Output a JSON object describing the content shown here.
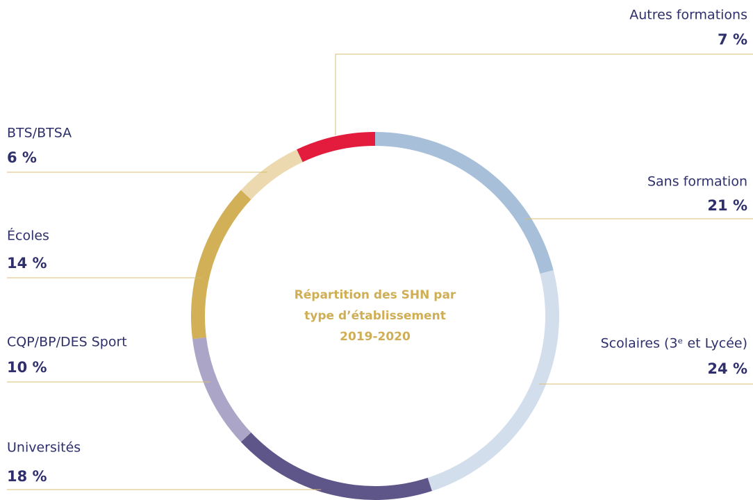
{
  "chart_data": {
    "type": "donut",
    "title": "Répartition des SHN par type d’établissement",
    "subtitle": "2019-2020",
    "categories": [
      "Sans formation",
      "Scolaires (3ᵉ et Lycée)",
      "Universités",
      "CQP/BP/DES Sport",
      "Écoles",
      "BTS/BTSA",
      "Autres formations"
    ],
    "values": [
      21,
      24,
      18,
      10,
      14,
      6,
      7
    ],
    "value_labels": [
      "21 %",
      "24 %",
      "18 %",
      "10 %",
      "14 %",
      "6 %",
      "7 %"
    ],
    "colors": [
      "#a7bfd8",
      "#d3deec",
      "#5e5589",
      "#aba6c7",
      "#d1b057",
      "#ecd9b0",
      "#e31c3d"
    ]
  }
}
